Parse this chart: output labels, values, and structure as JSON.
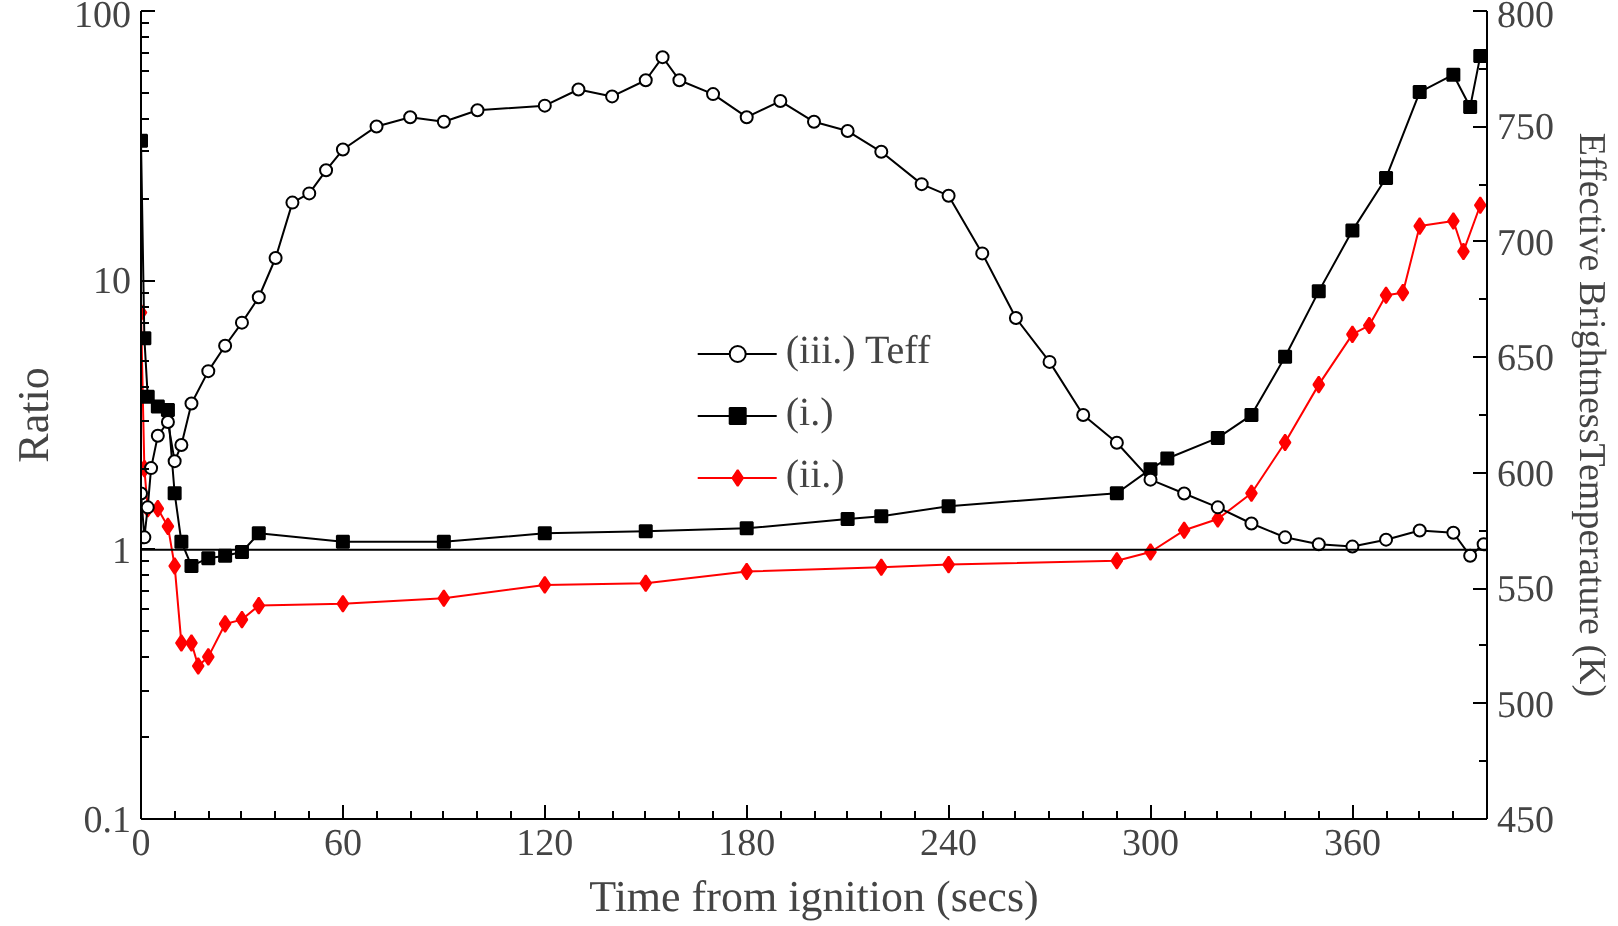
{
  "chart_data": {
    "type": "line",
    "xlabel": "Time from ignition (secs)",
    "ylabel": "Ratio",
    "y2label": "Effective BrightnessTemperature (K)",
    "xlim": [
      0,
      400
    ],
    "xticks": [
      0,
      60,
      120,
      180,
      240,
      300,
      360
    ],
    "ylim": [
      0.1,
      100
    ],
    "yticks": [
      0.1,
      1,
      10,
      100
    ],
    "log": "y",
    "y2lim": [
      450,
      800
    ],
    "y2ticks": [
      450,
      500,
      550,
      600,
      650,
      700,
      750,
      800
    ],
    "legend": "center",
    "grid": false,
    "ref_lines": [
      {
        "axis": "y",
        "value": 1,
        "color": "#000000"
      }
    ],
    "series": [
      {
        "name": "(iii.) Teff",
        "color": "#000000",
        "marker": "circle",
        "axis": "y2",
        "x": [
          0,
          1,
          2,
          3,
          5,
          8,
          10,
          12,
          15,
          20,
          25,
          30,
          35,
          40,
          45,
          50,
          55,
          60,
          70,
          80,
          90,
          100,
          120,
          130,
          140,
          150,
          155,
          160,
          170,
          180,
          190,
          200,
          210,
          220,
          232,
          240,
          250,
          260,
          270,
          280,
          290,
          300,
          310,
          320,
          330,
          340,
          350,
          360,
          370,
          380,
          390,
          395,
          399
        ],
        "values": [
          591,
          572,
          585,
          602,
          616,
          622,
          605,
          612,
          630,
          644,
          655,
          665,
          676,
          693,
          717,
          721,
          731,
          740,
          750,
          754,
          752,
          757,
          759,
          766,
          763,
          770,
          780,
          770,
          764,
          754,
          761,
          752,
          748,
          739,
          725,
          720,
          695,
          667,
          648,
          625,
          613,
          597,
          591,
          585,
          578,
          572,
          569,
          568,
          571,
          575,
          574,
          564,
          569
        ]
      },
      {
        "name": "(i.)",
        "color": "#000000",
        "marker": "square",
        "x": [
          0,
          1,
          2,
          5,
          8,
          10,
          12,
          15,
          20,
          25,
          30,
          35,
          60,
          90,
          120,
          150,
          180,
          210,
          220,
          240,
          290,
          300,
          305,
          320,
          330,
          340,
          350,
          360,
          370,
          380,
          390,
          395,
          398
        ],
        "values": [
          33,
          6.1,
          3.7,
          3.4,
          3.3,
          1.62,
          1.07,
          0.87,
          0.93,
          0.95,
          0.98,
          1.15,
          1.07,
          1.07,
          1.15,
          1.17,
          1.2,
          1.3,
          1.33,
          1.45,
          1.62,
          1.99,
          2.18,
          2.6,
          3.16,
          5.2,
          9.1,
          15.3,
          24,
          50,
          58,
          44,
          68
        ]
      },
      {
        "name": "(ii.)",
        "color": "#ff0000",
        "marker": "diamond",
        "x": [
          0,
          1,
          2,
          5,
          8,
          10,
          12,
          15,
          17,
          20,
          25,
          30,
          35,
          60,
          90,
          120,
          150,
          180,
          220,
          240,
          290,
          300,
          310,
          320,
          330,
          340,
          350,
          360,
          365,
          370,
          375,
          380,
          390,
          393,
          398
        ],
        "values": [
          7.6,
          2.0,
          1.42,
          1.42,
          1.22,
          0.87,
          0.45,
          0.45,
          0.37,
          0.4,
          0.53,
          0.55,
          0.62,
          0.63,
          0.66,
          0.74,
          0.75,
          0.83,
          0.86,
          0.88,
          0.91,
          0.98,
          1.18,
          1.3,
          1.62,
          2.5,
          4.1,
          6.3,
          6.8,
          8.8,
          9,
          15.9,
          16.6,
          12.8,
          19
        ]
      }
    ]
  }
}
